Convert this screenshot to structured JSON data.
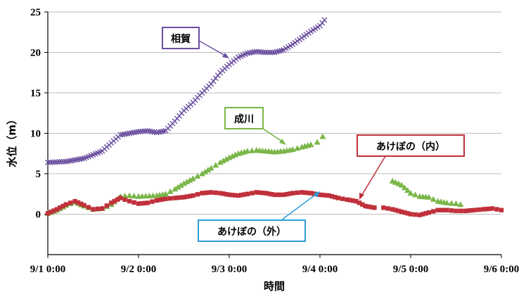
{
  "chart_data": {
    "type": "line",
    "title": "",
    "xlabel": "時間",
    "ylabel": "水位（m）",
    "ylim": [
      -5,
      25
    ],
    "yticks": [
      0,
      5,
      10,
      15,
      20,
      25
    ],
    "x_unit": "day",
    "xlim": [
      0,
      5
    ],
    "xticks": [
      "9/1 0:00",
      "9/2 0:00",
      "9/3 0:00",
      "9/4 0:00",
      "9/5 0:00",
      "9/6 0:00"
    ],
    "grid": "horizontal",
    "legend": "callouts",
    "series": [
      {
        "name": "相賀",
        "color": "#6b4fa0",
        "marker": "x",
        "points": [
          [
            0.0,
            6.4
          ],
          [
            0.2,
            6.5
          ],
          [
            0.4,
            6.9
          ],
          [
            0.6,
            7.8
          ],
          [
            0.8,
            9.8
          ],
          [
            1.0,
            10.2
          ],
          [
            1.1,
            10.3
          ],
          [
            1.2,
            10.1
          ],
          [
            1.3,
            10.3
          ],
          [
            1.4,
            11.5
          ],
          [
            1.5,
            12.8
          ],
          [
            1.6,
            13.8
          ],
          [
            1.7,
            15.0
          ],
          [
            1.8,
            16.1
          ],
          [
            1.9,
            17.5
          ],
          [
            2.0,
            18.5
          ],
          [
            2.1,
            19.4
          ],
          [
            2.2,
            19.9
          ],
          [
            2.3,
            20.1
          ],
          [
            2.4,
            20.0
          ],
          [
            2.5,
            20.0
          ],
          [
            2.6,
            20.3
          ],
          [
            2.7,
            21.0
          ],
          [
            2.8,
            21.8
          ],
          [
            2.9,
            22.6
          ],
          [
            3.0,
            23.3
          ],
          [
            3.05,
            24.0
          ]
        ],
        "label": "相賀"
      },
      {
        "name": "成川",
        "color": "#7ab648",
        "marker": "triangle",
        "points": [
          [
            0.0,
            0.1
          ],
          [
            0.1,
            0.5
          ],
          [
            0.2,
            1.1
          ],
          [
            0.3,
            1.5
          ],
          [
            0.4,
            1.0
          ],
          [
            0.5,
            0.6
          ],
          [
            0.6,
            0.7
          ],
          [
            0.7,
            1.2
          ],
          [
            0.8,
            2.2
          ],
          [
            0.9,
            2.3
          ],
          [
            1.0,
            2.2
          ],
          [
            1.2,
            2.3
          ],
          [
            1.3,
            2.5
          ],
          [
            1.4,
            3.1
          ],
          [
            1.5,
            3.8
          ],
          [
            1.6,
            4.4
          ],
          [
            1.7,
            5.0
          ],
          [
            1.8,
            5.7
          ],
          [
            1.9,
            6.4
          ],
          [
            2.0,
            7.0
          ],
          [
            2.1,
            7.5
          ],
          [
            2.2,
            7.8
          ],
          [
            2.3,
            7.9
          ],
          [
            2.4,
            7.8
          ],
          [
            2.5,
            7.7
          ],
          [
            2.6,
            7.8
          ],
          [
            2.7,
            8.0
          ],
          [
            2.8,
            8.3
          ],
          [
            2.9,
            8.6
          ]
        ],
        "points_2": [
          [
            2.97,
            8.9
          ],
          [
            3.03,
            9.6
          ]
        ],
        "points_3": [
          [
            3.8,
            4.1
          ],
          [
            3.9,
            3.6
          ],
          [
            4.0,
            2.6
          ],
          [
            4.1,
            2.2
          ],
          [
            4.2,
            2.1
          ],
          [
            4.3,
            1.6
          ],
          [
            4.4,
            1.4
          ],
          [
            4.5,
            1.3
          ],
          [
            4.55,
            1.2
          ]
        ],
        "label": "成川"
      },
      {
        "name": "あけぼの（内）",
        "color": "#c0303a",
        "marker": "square",
        "points": [
          [
            0.0,
            0.1
          ],
          [
            0.1,
            0.6
          ],
          [
            0.2,
            1.2
          ],
          [
            0.3,
            1.6
          ],
          [
            0.4,
            1.1
          ],
          [
            0.5,
            0.6
          ],
          [
            0.6,
            0.7
          ],
          [
            0.7,
            1.4
          ],
          [
            0.8,
            2.0
          ],
          [
            0.9,
            1.6
          ],
          [
            1.0,
            1.3
          ],
          [
            1.1,
            1.4
          ],
          [
            1.2,
            1.7
          ],
          [
            1.3,
            1.9
          ],
          [
            1.4,
            2.0
          ],
          [
            1.5,
            2.1
          ],
          [
            1.6,
            2.3
          ],
          [
            1.7,
            2.6
          ],
          [
            1.8,
            2.7
          ],
          [
            1.9,
            2.6
          ],
          [
            2.0,
            2.4
          ],
          [
            2.1,
            2.3
          ],
          [
            2.2,
            2.5
          ],
          [
            2.3,
            2.7
          ],
          [
            2.4,
            2.6
          ],
          [
            2.5,
            2.4
          ],
          [
            2.6,
            2.4
          ],
          [
            2.7,
            2.6
          ],
          [
            2.8,
            2.7
          ],
          [
            2.9,
            2.6
          ],
          [
            3.0,
            2.4
          ],
          [
            3.1,
            2.3
          ],
          [
            3.2,
            2.0
          ],
          [
            3.3,
            1.8
          ],
          [
            3.4,
            1.6
          ],
          [
            3.5,
            1.0
          ],
          [
            3.6,
            0.8
          ]
        ],
        "points_2": [
          [
            3.7,
            0.8
          ],
          [
            3.8,
            0.6
          ],
          [
            3.9,
            0.3
          ],
          [
            4.0,
            0.0
          ],
          [
            4.1,
            -0.1
          ],
          [
            4.2,
            0.2
          ],
          [
            4.3,
            0.5
          ],
          [
            4.4,
            0.5
          ],
          [
            4.5,
            0.4
          ],
          [
            4.6,
            0.4
          ],
          [
            4.7,
            0.5
          ],
          [
            4.8,
            0.6
          ],
          [
            4.9,
            0.7
          ],
          [
            5.0,
            0.5
          ]
        ],
        "label": "あけぼの（内）"
      },
      {
        "name": "あけぼの（外）",
        "color": "#2a9fd6",
        "marker": "none",
        "points": [],
        "label": "あけぼの（外）"
      }
    ]
  },
  "callouts": {
    "aiga": "相賀",
    "narukawa": "成川",
    "akebono_in": "あけぼの（内）",
    "akebono_out": "あけぼの（外）"
  }
}
